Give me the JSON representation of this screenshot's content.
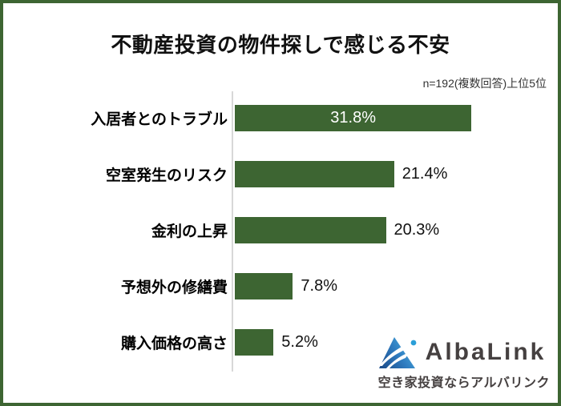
{
  "page": {
    "background": "#ffffff",
    "border_color": "#3d6532"
  },
  "header": {
    "title": "不動産投資の物件探しで感じる不安",
    "note": "n=192(複数回答)上位5位"
  },
  "chart_data": {
    "type": "bar",
    "orientation": "horizontal",
    "title": "不動産投資の物件探しで感じる不安",
    "subtitle": "n=192(複数回答)上位5位",
    "categories": [
      "入居者とのトラブル",
      "空室発生のリスク",
      "金利の上昇",
      "予想外の修繕費",
      "購入価格の高さ"
    ],
    "values": [
      31.8,
      21.4,
      20.3,
      7.8,
      5.2
    ],
    "value_labels": [
      "31.8%",
      "21.4%",
      "20.3%",
      "7.8%",
      "5.2%"
    ],
    "value_label_inside": [
      true,
      false,
      false,
      false,
      false
    ],
    "xlabel": "",
    "ylabel": "",
    "xlim": [
      0,
      35
    ],
    "grid": false,
    "legend": "none",
    "bar_color": "#3d6532",
    "axis_line_color": "#d8d8d8"
  },
  "logo": {
    "name": "AlbaLink",
    "tagline": "空き家投資ならアルバリンク",
    "text_color": "#454040",
    "triangle_colors": {
      "dark": "#1d4f8e",
      "mid": "#2f7cc0",
      "light": "#4fb4e2",
      "dot": "#2b9fd8"
    }
  }
}
